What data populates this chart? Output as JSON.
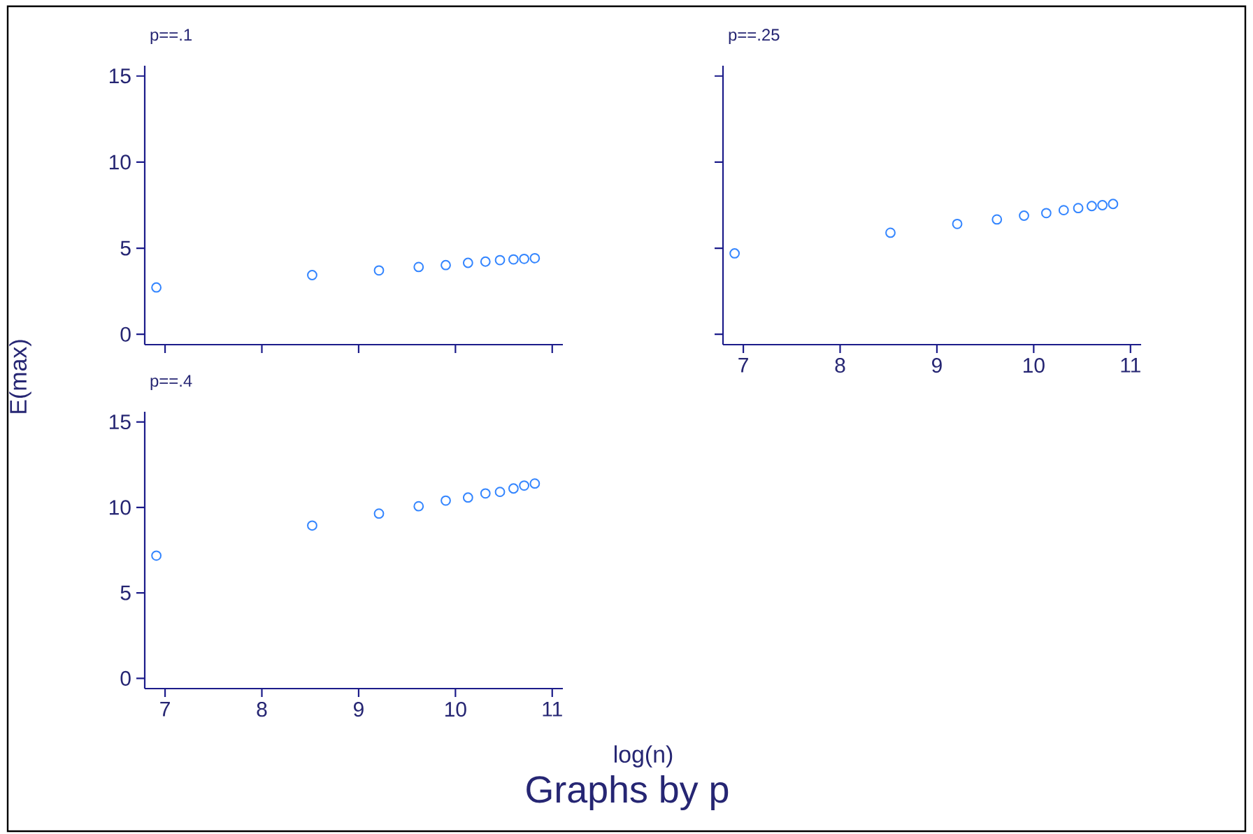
{
  "chart_data": [
    {
      "type": "scatter",
      "title": "p==.1",
      "ylabel": "E(max)",
      "marker": "circle",
      "tick_labels": "y",
      "x": [
        6.91,
        8.52,
        9.21,
        9.62,
        9.9,
        10.13,
        10.31,
        10.46,
        10.6,
        10.71,
        10.82
      ],
      "series": [
        {
          "color": "#3385ff",
          "values": [
            2.72,
            3.44,
            3.71,
            3.91,
            4.02,
            4.15,
            4.22,
            4.31,
            4.35,
            4.38,
            4.42
          ]
        }
      ],
      "xlim": [
        6.79,
        11.11
      ],
      "ylim": [
        -0.6,
        15.6
      ],
      "xticks": [
        7,
        8,
        9,
        10,
        11
      ],
      "yticks": [
        0,
        5,
        10,
        15
      ]
    },
    {
      "type": "scatter",
      "title": "p==.25",
      "marker": "circle",
      "tick_labels": "x",
      "x": [
        6.91,
        8.52,
        9.21,
        9.62,
        9.9,
        10.13,
        10.31,
        10.46,
        10.6,
        10.71,
        10.82
      ],
      "series": [
        {
          "color": "#3385ff",
          "values": [
            4.7,
            5.9,
            6.41,
            6.67,
            6.89,
            7.04,
            7.21,
            7.33,
            7.45,
            7.5,
            7.57
          ]
        }
      ],
      "xlim": [
        6.79,
        11.11
      ],
      "ylim": [
        -0.6,
        15.6
      ],
      "xticks": [
        7,
        8,
        9,
        10,
        11
      ],
      "yticks": [
        0,
        5,
        10,
        15
      ]
    },
    {
      "type": "scatter",
      "title": "p==.4",
      "xlabel": "log(n)",
      "marker": "circle",
      "annotations": [
        "Graphs by p"
      ],
      "x": [
        6.91,
        8.52,
        9.21,
        9.62,
        9.9,
        10.13,
        10.31,
        10.46,
        10.6,
        10.71,
        10.82
      ],
      "series": [
        {
          "color": "#3385ff",
          "values": [
            7.18,
            8.94,
            9.64,
            10.07,
            10.4,
            10.58,
            10.82,
            10.91,
            11.11,
            11.28,
            11.4
          ]
        }
      ],
      "xlim": [
        6.79,
        11.11
      ],
      "ylim": [
        -0.6,
        15.6
      ],
      "xticks": [
        7,
        8,
        9,
        10,
        11
      ],
      "yticks": [
        0,
        5,
        10,
        15
      ]
    }
  ]
}
